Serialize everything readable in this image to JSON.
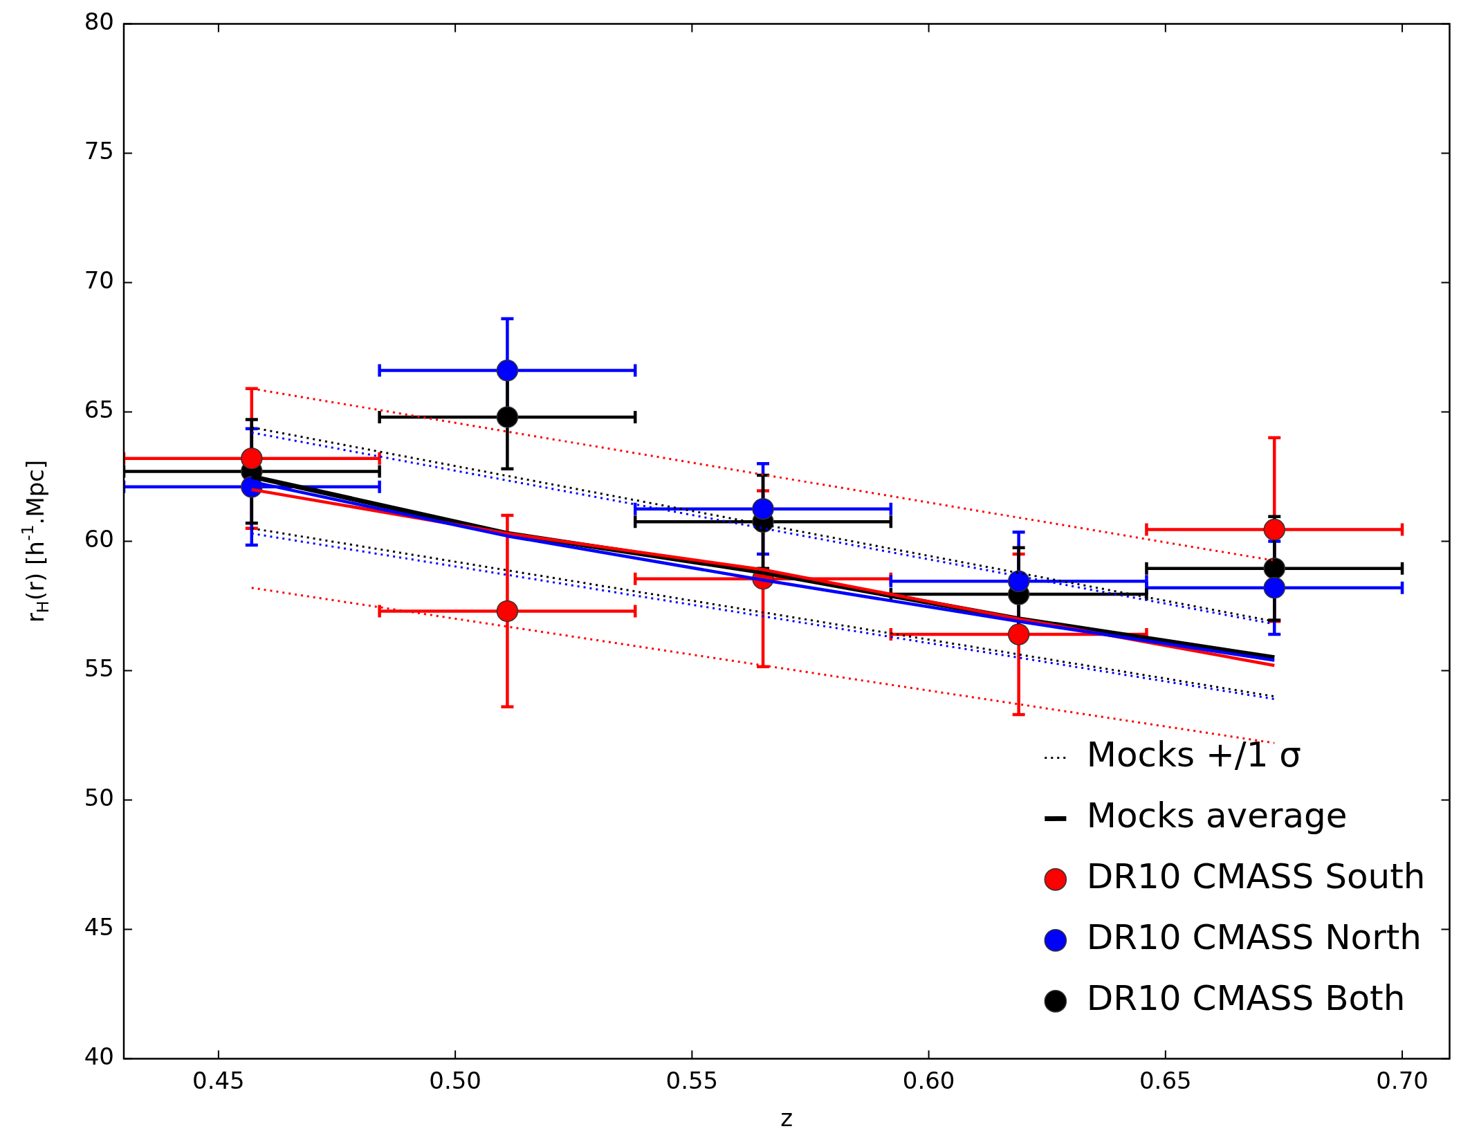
{
  "chart_data": {
    "type": "scatter",
    "xlabel": "z",
    "ylabel": "r$_{H}$(r) [h$^{-1}$.Mpc]",
    "xlim": [
      0.43,
      0.71
    ],
    "ylim": [
      40,
      80
    ],
    "xticks": [
      0.45,
      {
        "value": 0.5,
        "label": "0.50"
      },
      0.55,
      {
        "value": 0.6,
        "label": "0.60"
      },
      0.65,
      {
        "value": 0.7,
        "label": "0.70"
      }
    ],
    "yticks": [
      40,
      45,
      50,
      55,
      60,
      65,
      70,
      75,
      80
    ],
    "grid": false,
    "legend": "bottom right",
    "series": [
      {
        "type": "line",
        "color": "#ff0000",
        "line_style": "dotted",
        "marker": "none",
        "x": [
          0.457,
          0.673
        ],
        "values": [
          65.9,
          59.25
        ]
      },
      {
        "type": "line",
        "color": "#ff0000",
        "line_style": "dotted",
        "marker": "none",
        "x": [
          0.457,
          0.673
        ],
        "values": [
          58.2,
          52.2
        ]
      },
      {
        "type": "line",
        "color": "#0000ff",
        "line_style": "dotted",
        "marker": "none",
        "x": [
          0.457,
          0.673
        ],
        "values": [
          64.2,
          56.8
        ]
      },
      {
        "type": "line",
        "color": "#0000ff",
        "line_style": "dotted",
        "marker": "none",
        "x": [
          0.457,
          0.673
        ],
        "values": [
          60.3,
          53.9
        ]
      },
      {
        "type": "line",
        "name": "Mocks +/1 σ",
        "color": "#000000",
        "line_style": "dotted",
        "marker": "none",
        "x": [
          0.457,
          0.673
        ],
        "values": [
          64.4,
          56.9
        ]
      },
      {
        "type": "line",
        "color": "#000000",
        "line_style": "dotted",
        "marker": "none",
        "x": [
          0.457,
          0.673
        ],
        "values": [
          60.5,
          54.0
        ]
      },
      {
        "type": "line",
        "color": "#0000ff",
        "line_style": "solid",
        "marker": "none",
        "x": [
          0.457,
          0.511,
          0.565,
          0.619,
          0.673
        ],
        "values": [
          62.3,
          60.2,
          58.5,
          56.9,
          55.4
        ]
      },
      {
        "type": "line",
        "color": "#ff0000",
        "line_style": "solid",
        "marker": "none",
        "x": [
          0.457,
          0.511,
          0.565,
          0.619,
          0.673
        ],
        "values": [
          62.0,
          60.3,
          58.9,
          57.0,
          55.2
        ]
      },
      {
        "type": "line",
        "name": "Mocks average",
        "color": "#000000",
        "line_style": "solid",
        "marker": "none",
        "x": [
          0.457,
          0.511,
          0.565,
          0.619,
          0.673
        ],
        "values": [
          62.5,
          60.3,
          58.8,
          57.0,
          55.5
        ]
      },
      {
        "type": "scatter",
        "name": "DR10 CMASS South",
        "color": "#ff0000",
        "marker": "circle",
        "x": [
          0.457,
          0.511,
          0.565,
          0.619,
          0.673
        ],
        "values": [
          63.2,
          57.3,
          58.55,
          56.4,
          60.45
        ],
        "errors": [
          2.7,
          3.7,
          3.4,
          3.1,
          3.55
        ],
        "xerrors": [
          0.027,
          0.027,
          0.027,
          0.027,
          0.027
        ]
      },
      {
        "type": "scatter",
        "name": "DR10 CMASS North",
        "color": "#0000ff",
        "marker": "circle",
        "x": [
          0.457,
          0.511,
          0.565,
          0.619,
          0.673
        ],
        "values": [
          62.1,
          66.6,
          61.25,
          58.45,
          58.2
        ],
        "errors": [
          2.25,
          2.0,
          1.75,
          1.9,
          1.8
        ],
        "xerrors": [
          0.027,
          0.027,
          0.027,
          0.027,
          0.027
        ]
      },
      {
        "type": "scatter",
        "name": "DR10 CMASS Both",
        "color": "#000000",
        "marker": "circle",
        "x": [
          0.457,
          0.511,
          0.565,
          0.619,
          0.673
        ],
        "values": [
          62.7,
          64.8,
          60.75,
          57.95,
          58.95
        ],
        "errors": [
          2.0,
          2.0,
          1.8,
          1.8,
          2.0
        ],
        "xerrors": [
          0.027,
          0.027,
          0.027,
          0.027,
          0.027
        ]
      }
    ]
  }
}
